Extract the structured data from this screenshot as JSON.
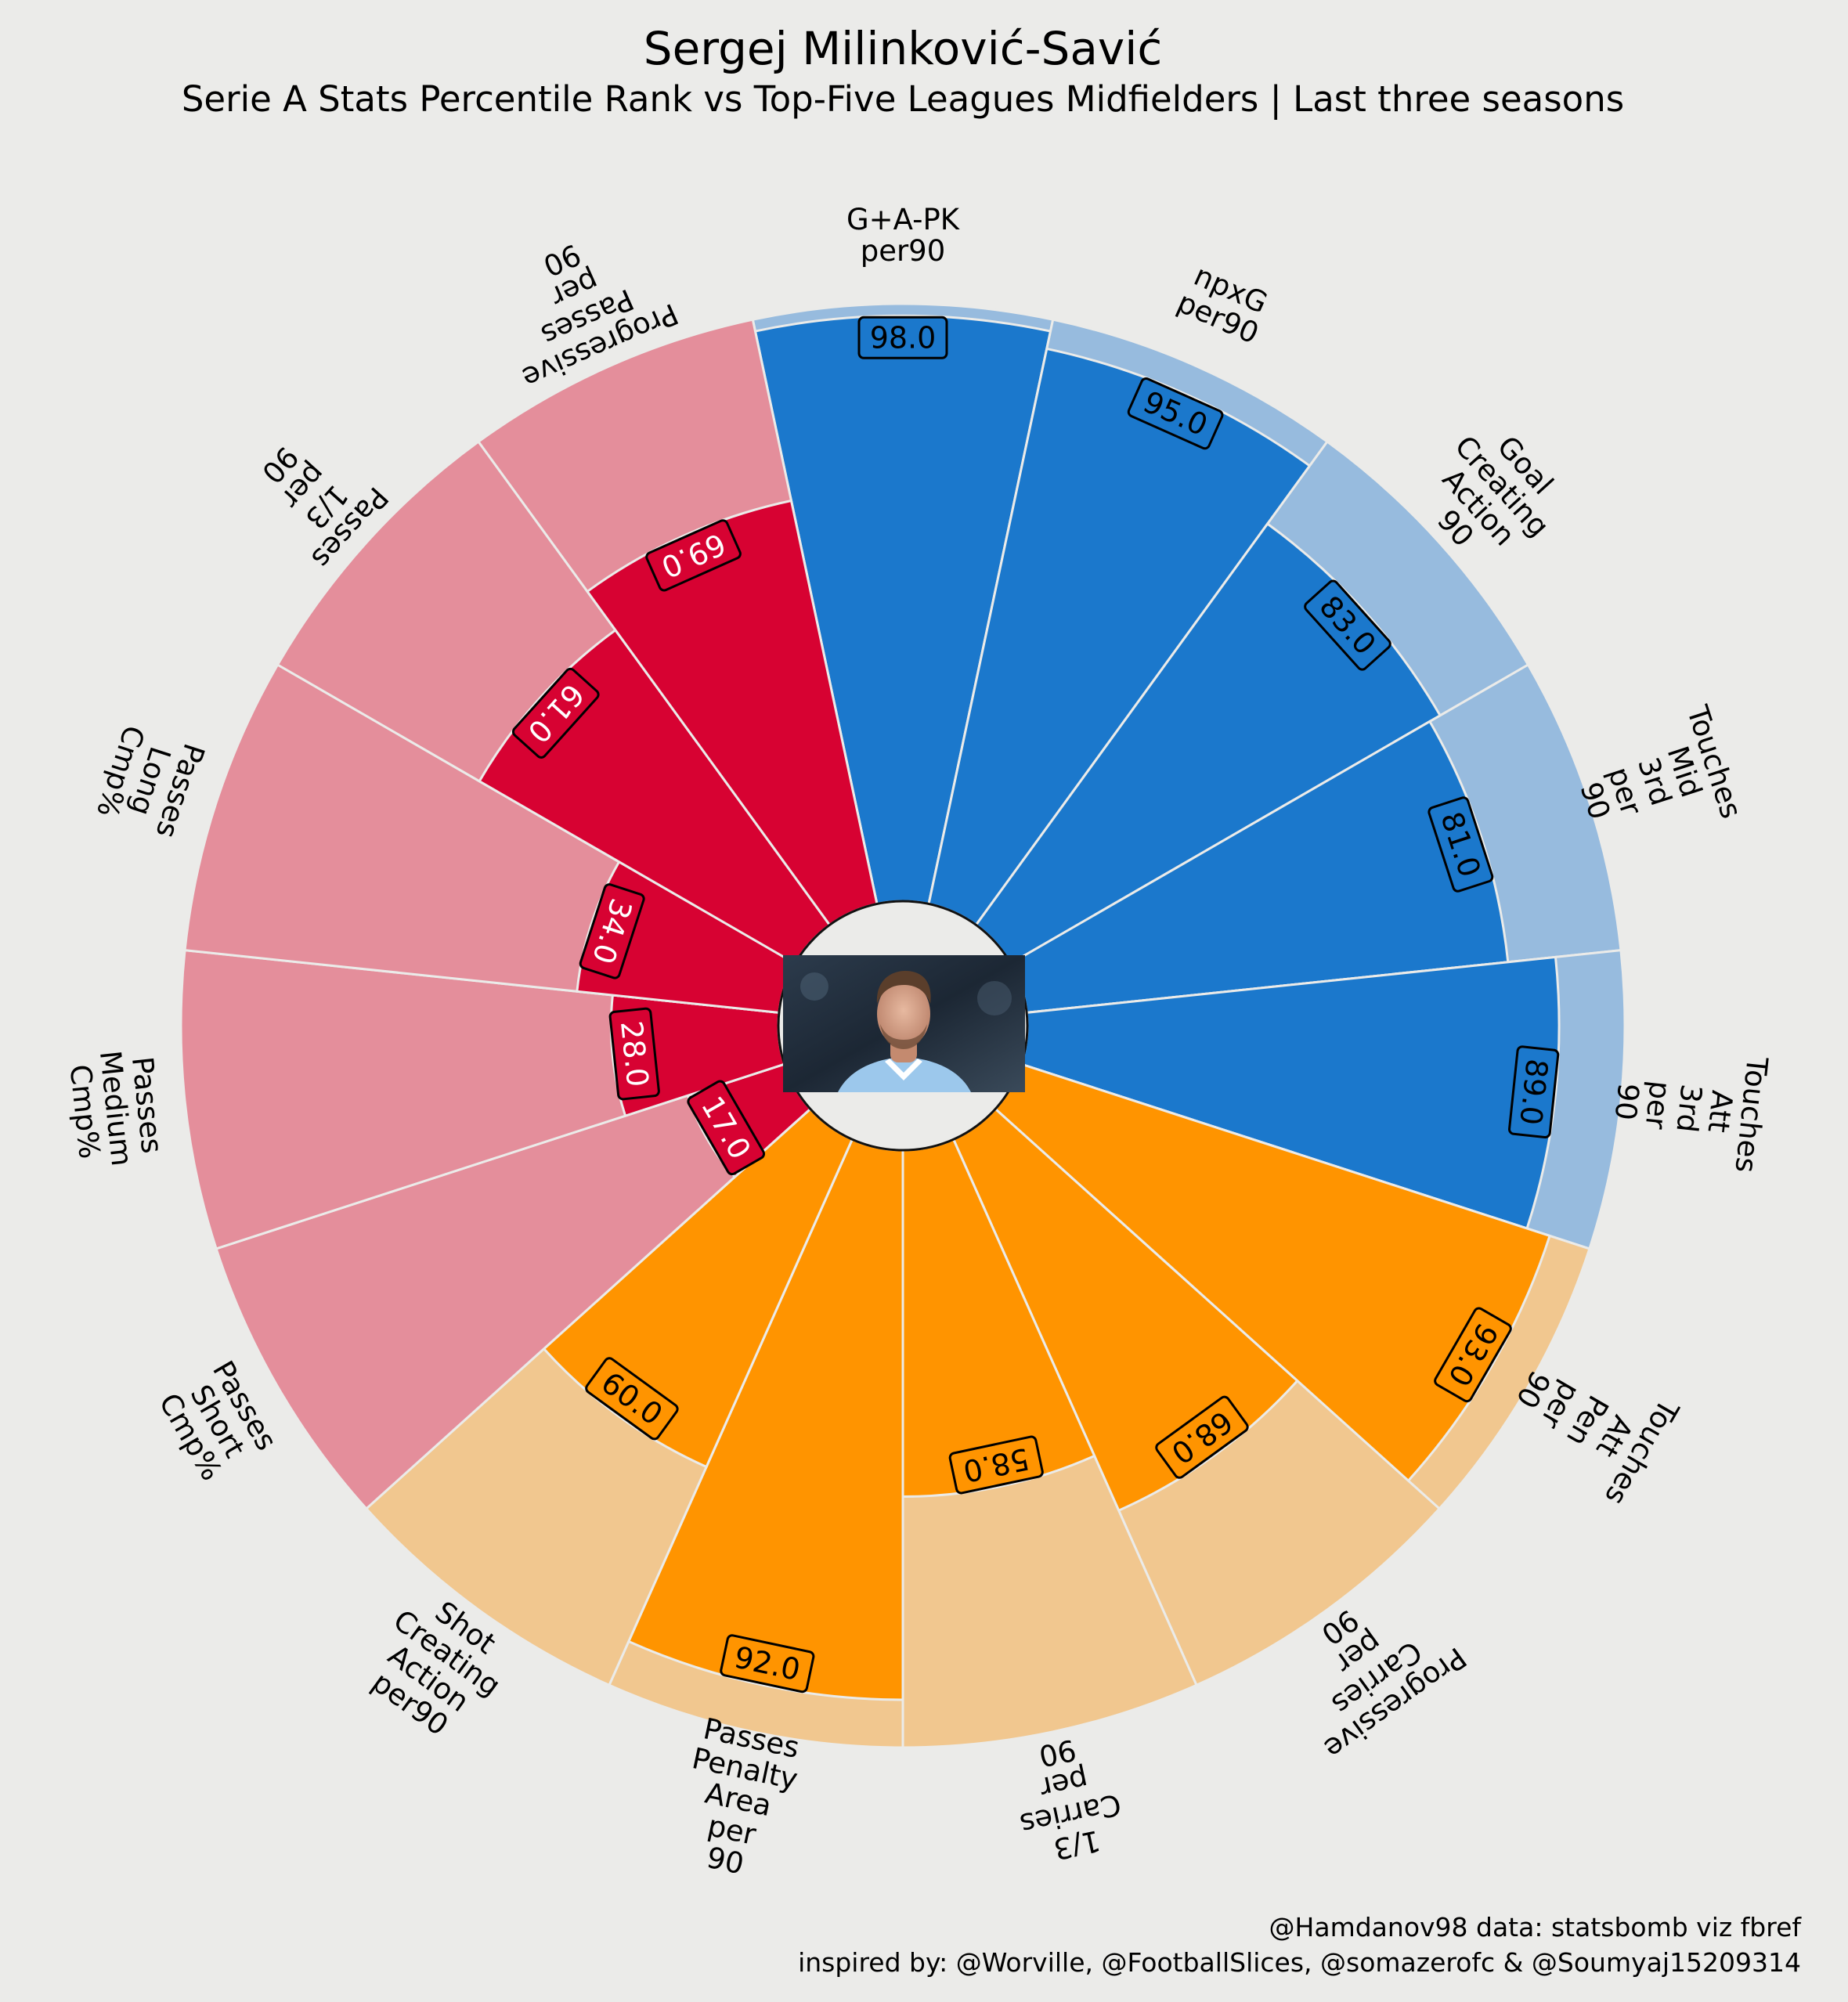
{
  "header": {
    "title": "Sergej Milinković-Savić",
    "subtitle": "Serie A Stats Percentile Rank vs Top-Five Leagues Midfielders | Last three seasons"
  },
  "footer": {
    "credit_line1": "@Hamdanov98 data: statsbomb viz fbref",
    "credit_line2": "inspired by: @Worville, @FootballSlices, @somazerofc & @Soumyaj15209314"
  },
  "colors": {
    "background": "#ebebe9",
    "attack": "#1b78cc",
    "attack_light": "#97bbde",
    "possession": "#ff9400",
    "possession_light": "#f1c78f",
    "passing": "#d70232",
    "passing_light": "#e48e9b",
    "slice_edge": "#ebebe9",
    "label_edge": "#000000"
  },
  "player_photo": {
    "kind": "headshot-photo"
  },
  "chart_data": {
    "type": "pizza",
    "max_value": 100,
    "value_format": "one-decimal",
    "groups": [
      "attack",
      "possession",
      "passing"
    ],
    "params": [
      {
        "name": "G+A-PK\nper90",
        "value": 98.0,
        "group": "attack"
      },
      {
        "name": "npxG\nper90",
        "value": 95.0,
        "group": "attack"
      },
      {
        "name": "Goal\nCreating\nAction\n90",
        "value": 83.0,
        "group": "attack"
      },
      {
        "name": "Touches\nMid\n3rd\nper\n90",
        "value": 81.0,
        "group": "attack"
      },
      {
        "name": "Touches\nAtt\n3rd\nper\n90",
        "value": 89.0,
        "group": "attack"
      },
      {
        "name": "Touches\nAtt\nPen\nper\n90",
        "value": 93.0,
        "group": "possession"
      },
      {
        "name": "Progressive\nCarries\nper\n90",
        "value": 68.0,
        "group": "possession"
      },
      {
        "name": "1/3\nCarries\nper\n90",
        "value": 58.0,
        "group": "possession"
      },
      {
        "name": "Passes\nPenalty\nArea\nper\n90",
        "value": 92.0,
        "group": "possession"
      },
      {
        "name": "Shot\nCreating\nAction\nper90",
        "value": 60.0,
        "group": "possession"
      },
      {
        "name": "Passes\nShort\nCmp%",
        "value": 17.0,
        "group": "passing"
      },
      {
        "name": "Passes\nMedium\nCmp%",
        "value": 28.0,
        "group": "passing"
      },
      {
        "name": "Passes\nLong\nCmp%",
        "value": 34.0,
        "group": "passing"
      },
      {
        "name": "Passes\n1/3\nper\n90",
        "value": 61.0,
        "group": "passing"
      },
      {
        "name": "Progressive\nPasses\nper\n90",
        "value": 69.0,
        "group": "passing"
      }
    ]
  }
}
